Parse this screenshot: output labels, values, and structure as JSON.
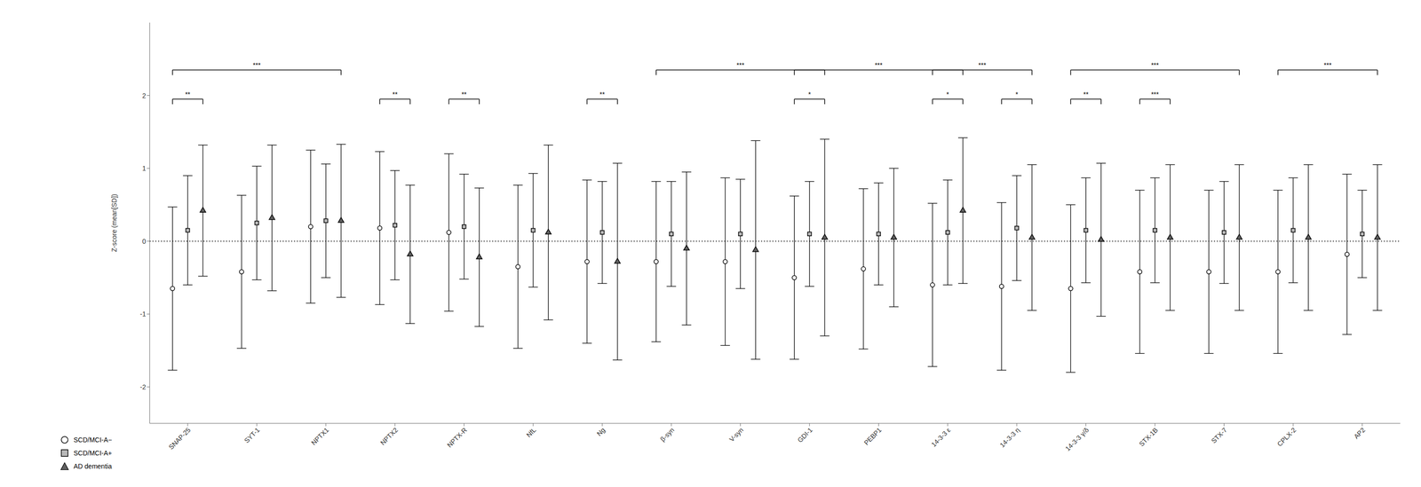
{
  "chart_data": {
    "type": "scatter",
    "ylabel": "Z-score (mean[SD])",
    "categories": [
      "SNAP-25",
      "SYT-1",
      "NPTX1",
      "NPTX2",
      "NPTX-R",
      "NfL",
      "Ng",
      "β-syn",
      "V-syn",
      "GDI-1",
      "PEBP1",
      "14-3-3 ε",
      "14-3-3 η",
      "14-3-3 γ/δ",
      "STX-1B",
      "STX-7",
      "CPLX-2",
      "AP2"
    ],
    "series": [
      {
        "name": "SCD/MCI-A−",
        "color": "#ffffff",
        "marker": "circle",
        "values": [
          -0.65,
          -0.42,
          0.2,
          0.18,
          0.12,
          -0.35,
          -0.28,
          -0.28,
          -0.28,
          -0.5,
          -0.38,
          -0.6,
          -0.62,
          -0.65,
          -0.42,
          -0.42,
          -0.42,
          -0.18
        ],
        "errors": [
          1.12,
          1.05,
          1.05,
          1.05,
          1.08,
          1.12,
          1.12,
          1.1,
          1.15,
          1.12,
          1.1,
          1.12,
          1.15,
          1.15,
          1.12,
          1.12,
          1.12,
          1.1
        ]
      },
      {
        "name": "SCD/MCI-A+",
        "color": "#b8b8b8",
        "marker": "square",
        "values": [
          0.15,
          0.25,
          0.28,
          0.22,
          0.2,
          0.15,
          0.12,
          0.1,
          0.1,
          0.1,
          0.1,
          0.12,
          0.18,
          0.15,
          0.15,
          0.12,
          0.15,
          0.1
        ],
        "errors": [
          0.75,
          0.78,
          0.78,
          0.75,
          0.72,
          0.78,
          0.7,
          0.72,
          0.75,
          0.72,
          0.7,
          0.72,
          0.72,
          0.72,
          0.72,
          0.7,
          0.72,
          0.6
        ]
      },
      {
        "name": "AD dementia",
        "color": "#606060",
        "marker": "triangle",
        "values": [
          0.42,
          0.32,
          0.28,
          -0.18,
          -0.22,
          0.12,
          -0.28,
          -0.1,
          -0.12,
          0.05,
          0.05,
          0.42,
          0.05,
          0.02,
          0.05,
          0.05,
          0.05,
          0.05
        ],
        "errors": [
          0.9,
          1.0,
          1.05,
          0.95,
          0.95,
          1.2,
          1.35,
          1.05,
          1.5,
          1.35,
          0.95,
          1.0,
          1.0,
          1.05,
          1.0,
          1.0,
          1.0,
          1.0
        ]
      }
    ],
    "ylim": [
      -2.5,
      3.0
    ],
    "yticks": [
      -2,
      -1,
      0,
      1,
      2
    ],
    "grid": false,
    "legend": "bottom left",
    "annotations": [
      {
        "type": "hline",
        "y": 0,
        "line_style": "dotted"
      },
      {
        "type": "bracket",
        "text": "**",
        "y": 1.88,
        "from": {
          "category": "SNAP-25",
          "series": "SCD/MCI-A−"
        },
        "to": {
          "category": "SNAP-25",
          "series": "AD dementia"
        }
      },
      {
        "type": "bracket",
        "text": "**",
        "y": 1.88,
        "from": {
          "category": "NPTX2",
          "series": "SCD/MCI-A−"
        },
        "to": {
          "category": "NPTX2",
          "series": "AD dementia"
        }
      },
      {
        "type": "bracket",
        "text": "**",
        "y": 1.88,
        "from": {
          "category": "NPTX-R",
          "series": "SCD/MCI-A−"
        },
        "to": {
          "category": "NPTX-R",
          "series": "AD dementia"
        }
      },
      {
        "type": "bracket",
        "text": "**",
        "y": 1.88,
        "from": {
          "category": "Ng",
          "series": "SCD/MCI-A−"
        },
        "to": {
          "category": "Ng",
          "series": "AD dementia"
        }
      },
      {
        "type": "bracket",
        "text": "*",
        "y": 1.88,
        "from": {
          "category": "GDI-1",
          "series": "SCD/MCI-A−"
        },
        "to": {
          "category": "GDI-1",
          "series": "AD dementia"
        }
      },
      {
        "type": "bracket",
        "text": "*",
        "y": 1.88,
        "from": {
          "category": "14-3-3 ε",
          "series": "SCD/MCI-A−"
        },
        "to": {
          "category": "14-3-3 ε",
          "series": "AD dementia"
        }
      },
      {
        "type": "bracket",
        "text": "*",
        "y": 1.88,
        "from": {
          "category": "14-3-3 η",
          "series": "SCD/MCI-A−"
        },
        "to": {
          "category": "14-3-3 η",
          "series": "AD dementia"
        }
      },
      {
        "type": "bracket",
        "text": "**",
        "y": 1.88,
        "from": {
          "category": "14-3-3 γ/δ",
          "series": "SCD/MCI-A−"
        },
        "to": {
          "category": "14-3-3 γ/δ",
          "series": "AD dementia"
        }
      },
      {
        "type": "bracket",
        "text": "***",
        "y": 1.88,
        "from": {
          "category": "STX-1B",
          "series": "SCD/MCI-A−"
        },
        "to": {
          "category": "STX-1B",
          "series": "AD dementia"
        }
      },
      {
        "type": "bracket",
        "text": "***",
        "y": 2.28,
        "from": {
          "category": "SNAP-25",
          "series": "SCD/MCI-A−"
        },
        "to": {
          "category": "NPTX1",
          "series": "AD dementia"
        }
      },
      {
        "type": "bracket",
        "text": "***",
        "y": 2.28,
        "from": {
          "category": "β-syn",
          "series": "SCD/MCI-A−"
        },
        "to": {
          "category": "GDI-1",
          "series": "AD dementia"
        }
      },
      {
        "type": "bracket",
        "text": "***",
        "y": 2.28,
        "from": {
          "category": "GDI-1",
          "series": "SCD/MCI-A−"
        },
        "to": {
          "category": "14-3-3 ε",
          "series": "AD dementia"
        }
      },
      {
        "type": "bracket",
        "text": "***",
        "y": 2.28,
        "from": {
          "category": "14-3-3 ε",
          "series": "SCD/MCI-A−"
        },
        "to": {
          "category": "14-3-3 η",
          "series": "AD dementia"
        }
      },
      {
        "type": "bracket",
        "text": "***",
        "y": 2.28,
        "from": {
          "category": "14-3-3 γ/δ",
          "series": "SCD/MCI-A−"
        },
        "to": {
          "category": "STX-7",
          "series": "AD dementia"
        }
      },
      {
        "type": "bracket",
        "text": "***",
        "y": 2.28,
        "from": {
          "category": "CPLX-2",
          "series": "SCD/MCI-A−"
        },
        "to": {
          "category": "AP2",
          "series": "AD dementia"
        }
      }
    ]
  }
}
